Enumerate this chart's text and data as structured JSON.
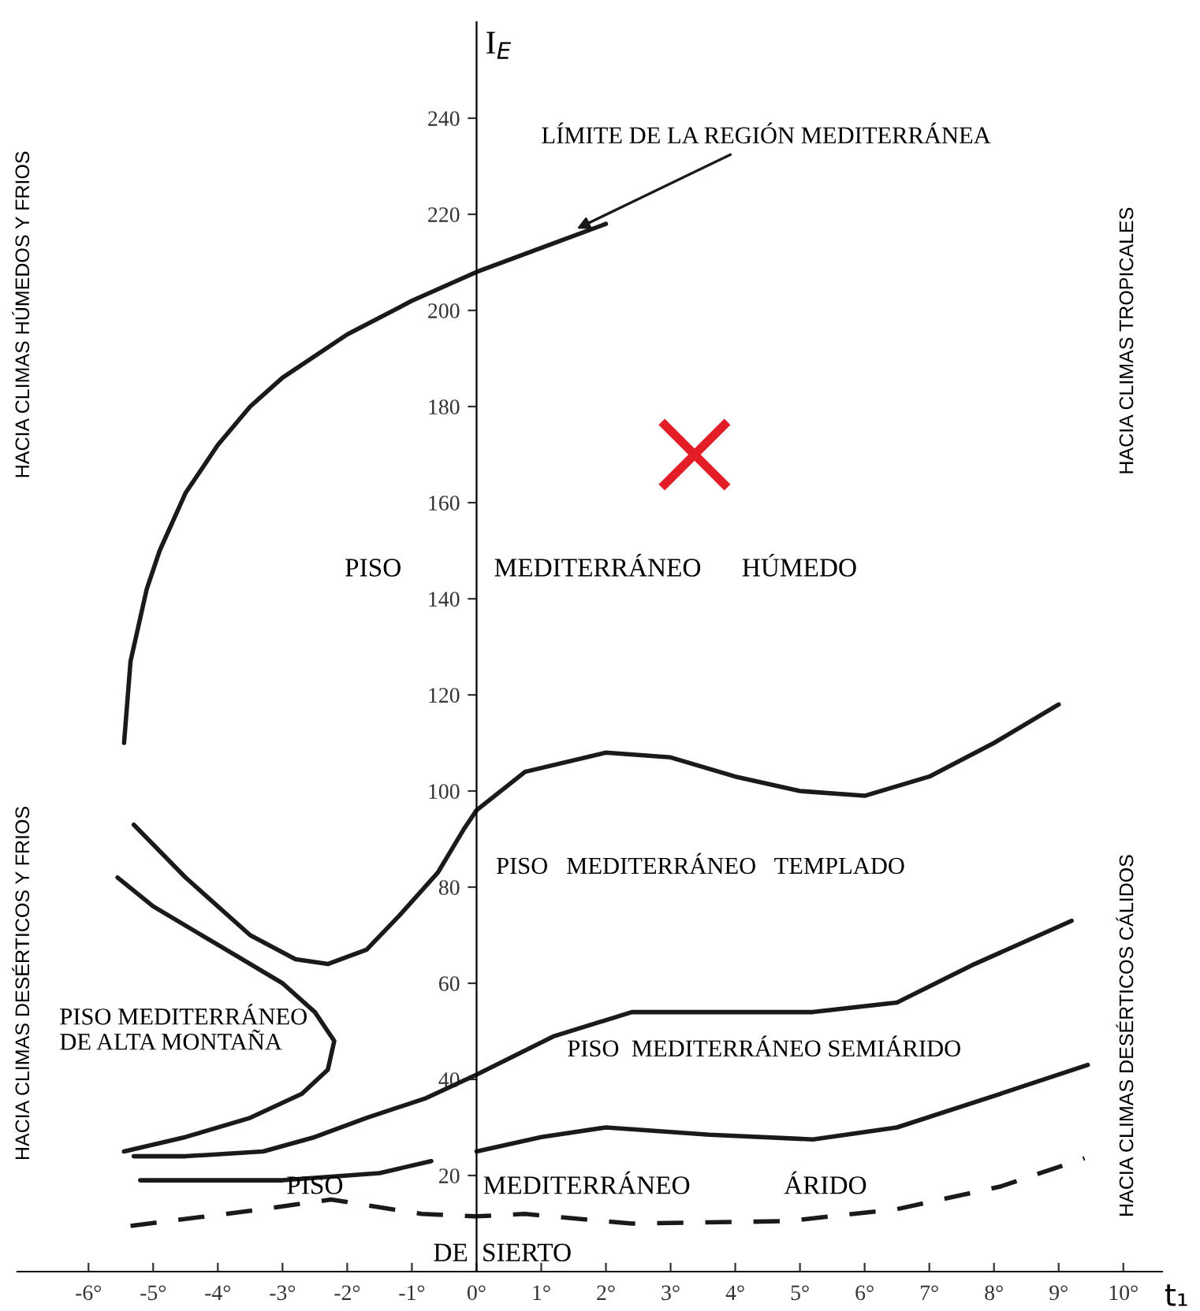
{
  "chart_data": {
    "type": "line",
    "xlabel": "t₁",
    "ylabel": "I$_{E}$",
    "xlim": [
      -7.1,
      10.6
    ],
    "ylim": [
      0,
      260
    ],
    "xticks": [
      {
        "value": -6,
        "label": "-6°"
      },
      {
        "value": -5,
        "label": "-5°"
      },
      {
        "value": -4,
        "label": "-4°"
      },
      {
        "value": -3,
        "label": "-3°"
      },
      {
        "value": -2,
        "label": "-2°"
      },
      {
        "value": -1,
        "label": "-1°"
      },
      {
        "value": 0,
        "label": "0°"
      },
      {
        "value": 1,
        "label": "1°"
      },
      {
        "value": 2,
        "label": "2°"
      },
      {
        "value": 3,
        "label": "3°"
      },
      {
        "value": 4,
        "label": "4°"
      },
      {
        "value": 5,
        "label": "5°"
      },
      {
        "value": 6,
        "label": "6°"
      },
      {
        "value": 7,
        "label": "7°"
      },
      {
        "value": 8,
        "label": "8°"
      },
      {
        "value": 9,
        "label": "9°"
      },
      {
        "value": 10,
        "label": "10°"
      }
    ],
    "yticks": [
      20,
      40,
      60,
      80,
      100,
      120,
      140,
      160,
      180,
      200,
      220,
      240
    ],
    "marker": "none",
    "line_style": "solid",
    "series": [
      {
        "color": "#1a1a1a",
        "x": [
          -5.45,
          -5.35,
          -5.1,
          -4.9,
          -4.5,
          -4.0,
          -3.5,
          -3.0,
          -2.0,
          -1.0,
          0,
          1,
          2
        ],
        "values": [
          110,
          127,
          142,
          150,
          162,
          172,
          180,
          186,
          195,
          202,
          208,
          213,
          218
        ]
      },
      {
        "color": "#1a1a1a",
        "x": [
          -5.3,
          -4.5,
          -3.5,
          -2.8,
          -2.3,
          -1.7,
          -1.2,
          -0.6,
          -0.2,
          0,
          0.75,
          2,
          3,
          4,
          5,
          6,
          7,
          8,
          9
        ],
        "values": [
          93,
          82,
          70,
          65,
          64,
          67,
          74,
          83,
          92,
          96,
          104,
          108,
          107,
          103,
          100,
          99,
          103,
          110,
          118
        ]
      },
      {
        "color": "#1a1a1a",
        "x": [
          -5.55,
          -5,
          -4,
          -3,
          -2.5,
          -2.2,
          -2.3,
          -2.7,
          -3.5,
          -4.5,
          -5.45
        ],
        "values": [
          82,
          76,
          68,
          60,
          54,
          48,
          42,
          37,
          32,
          28,
          25
        ]
      },
      {
        "color": "#1a1a1a",
        "x": [
          -5.3,
          -4.5,
          -3.3,
          -2.5,
          -1.7,
          -0.8,
          0,
          1.2,
          2.4,
          3.6,
          5.2,
          6.5,
          7.7,
          9.2
        ],
        "values": [
          24,
          24,
          25,
          28,
          32,
          36,
          41,
          49,
          54,
          54,
          54,
          56,
          64,
          73
        ]
      },
      {
        "color": "#1a1a1a",
        "x": [
          -5.2,
          -3,
          -1.5,
          -0.7,
          -0.35,
          0,
          1,
          2,
          3.6,
          5.2,
          6.5,
          8.1,
          9.45
        ],
        "values": [
          19,
          19,
          20.5,
          23,
          null,
          25,
          28,
          30,
          28.5,
          27.5,
          30,
          37,
          43
        ]
      },
      {
        "color": "#1a1a1a",
        "line_style": "dashed",
        "x": [
          -5.35,
          -3.3,
          -2.25,
          -0.85,
          0,
          0.75,
          2.4,
          4.8,
          6.5,
          8.1,
          9.4
        ],
        "values": [
          9.5,
          13,
          15,
          12,
          11.5,
          12,
          10,
          10.5,
          13,
          17.7,
          23.6
        ]
      },
      {
        "type": "scatter",
        "marker": "cross",
        "color": "#e31e26",
        "x": [
          3.37
        ],
        "values": [
          170
        ]
      }
    ],
    "annotations": [
      {
        "text": "LÍMITE DE LA REGIÓN MEDITERRÁNEA",
        "x": 1.55,
        "y": 217
      },
      "PISO",
      "MEDITERRÁNEO",
      "HÚMEDO",
      "PISO   MEDITERRÁNEO   TEMPLADO",
      "PISO MEDITERRÁNEO\nDE ALTA MONTAÑA",
      "PISO  MEDITERRÁNEO SEMIÁRIDO",
      "PISO",
      "MEDITERRÁNEO",
      "ÁRIDO",
      "DE",
      "SIERTO",
      "HACIA CLIMAS HÚMEDOS Y FRIOS",
      "HACIA CLIMAS DESÉRTICOS Y FRIOS",
      "HACIA CLIMAS TROPICALES",
      "HACIA CLIMAS DESÉRTICOS CÁLIDOS"
    ]
  }
}
